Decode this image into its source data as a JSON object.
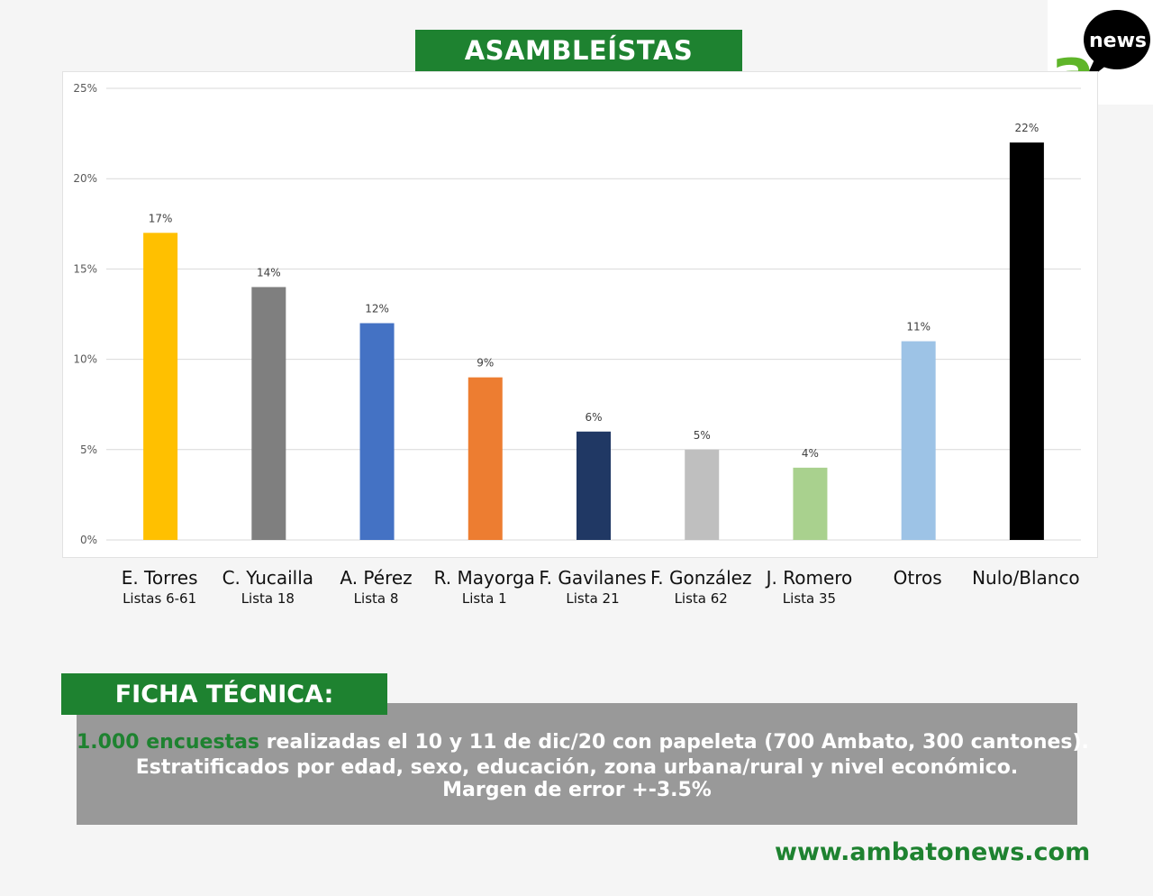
{
  "header": {
    "title": "ASAMBLEÍSTAS"
  },
  "logo": {
    "text": "news",
    "letter": "a"
  },
  "chart_data": {
    "type": "bar",
    "categories": [
      {
        "name": "E. Torres",
        "list": "Listas 6-61"
      },
      {
        "name": "C. Yucailla",
        "list": "Lista 18"
      },
      {
        "name": "A. Pérez",
        "list": "Lista 8"
      },
      {
        "name": "R. Mayorga",
        "list": "Lista 1"
      },
      {
        "name": "F. Gavilanes",
        "list": "Lista 21"
      },
      {
        "name": "F. González",
        "list": "Lista 62"
      },
      {
        "name": "J. Romero",
        "list": "Lista 35"
      },
      {
        "name": "Otros",
        "list": ""
      },
      {
        "name": "Nulo/Blanco",
        "list": ""
      }
    ],
    "values": [
      17,
      14,
      12,
      9,
      6,
      5,
      4,
      11,
      22
    ],
    "data_labels": [
      "17%",
      "14%",
      "12%",
      "9%",
      "6%",
      "5%",
      "4%",
      "11%",
      "22%"
    ],
    "colors": [
      "#ffc000",
      "#7f7f7f",
      "#4472c4",
      "#ed7d31",
      "#203864",
      "#bfbfbf",
      "#a9d18e",
      "#9dc3e6",
      "#000000"
    ],
    "ylim": [
      0,
      25
    ],
    "yticks": [
      "0%",
      "5%",
      "10%",
      "15%",
      "20%",
      "25%"
    ],
    "grid": true
  },
  "ficha": {
    "title": "FICHA TÉCNICA:",
    "line1_highlight": "1.000 encuestas",
    "line1_rest": " realizadas el 10 y 11 de dic/20 con papeleta (700 Ambato, 300 cantones).",
    "line2": "Estratificados por edad, sexo, educación, zona urbana/rural y nivel económico.",
    "line3": "Margen de error +-3.5%"
  },
  "footer": {
    "url": "www.ambatonews.com"
  },
  "colors": {
    "brand_green": "#1e8230",
    "panel_gray": "#999999"
  }
}
